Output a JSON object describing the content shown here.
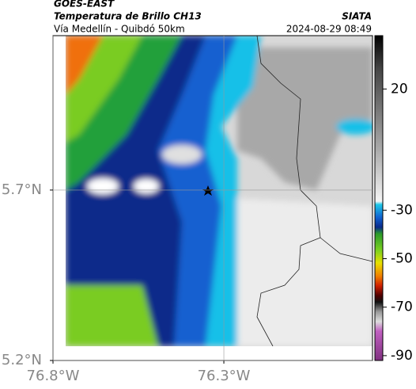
{
  "header": {
    "title": "GOES-EAST",
    "subtitle": "Temperatura de Brillo CH13",
    "source": "SIATA",
    "route": "Vía Medellín - Quibdó 50km",
    "datetime": "2024-08-29 08:49"
  },
  "map": {
    "xlim": [
      -76.8,
      -75.865
    ],
    "ylim": [
      5.2,
      6.153
    ],
    "xticks": [
      {
        "value": -76.8,
        "label": "76.8°W"
      },
      {
        "value": -76.3,
        "label": "76.3°W"
      }
    ],
    "yticks": [
      {
        "value": 5.2,
        "label": "5.2°N"
      },
      {
        "value": 5.7,
        "label": "5.7°N"
      }
    ],
    "grid": true
  },
  "colorbar": {
    "lim": [
      -92,
      42
    ],
    "ticks": [
      20,
      -30,
      -50,
      -70,
      -90
    ]
  }
}
